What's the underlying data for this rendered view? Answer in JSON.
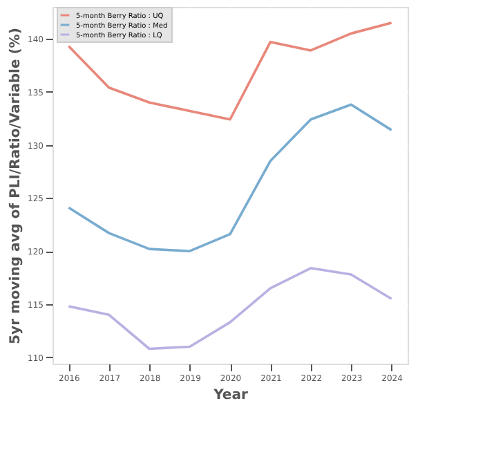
{
  "chart_data": {
    "type": "line",
    "xlabel": "Year",
    "ylabel": "5yr moving avg of PLI/Ratio/Variable (%)",
    "x": [
      2016,
      2017,
      2018,
      2019,
      2020,
      2021,
      2022,
      2023,
      2024
    ],
    "series": [
      {
        "name": "5-month Berry Ratio : UQ",
        "color": "#e8877a",
        "values": [
          139.3,
          135.4,
          134.0,
          133.2,
          132.4,
          139.7,
          138.9,
          140.5,
          141.5
        ]
      },
      {
        "name": "5-month Berry Ratio : Med",
        "color": "#78acd0",
        "values": [
          124.1,
          121.7,
          120.2,
          120.0,
          121.6,
          128.5,
          132.4,
          133.8,
          131.4
        ]
      },
      {
        "name": "5-month Berry Ratio : LQ",
        "color": "#b9b1e2",
        "values": [
          114.8,
          114.0,
          110.8,
          111.0,
          113.3,
          116.5,
          118.4,
          117.8,
          115.5
        ]
      }
    ],
    "xlim": [
      2015.6,
      2024.4
    ],
    "xticks": [
      2016,
      2017,
      2018,
      2019,
      2020,
      2021,
      2022,
      2023,
      2024
    ],
    "ylim": [
      109.4,
      143
    ],
    "yticks": [
      110,
      115,
      120,
      125,
      130,
      135,
      140
    ],
    "grid": true,
    "legend": "top left",
    "marker": "none",
    "line_style": "solid"
  }
}
